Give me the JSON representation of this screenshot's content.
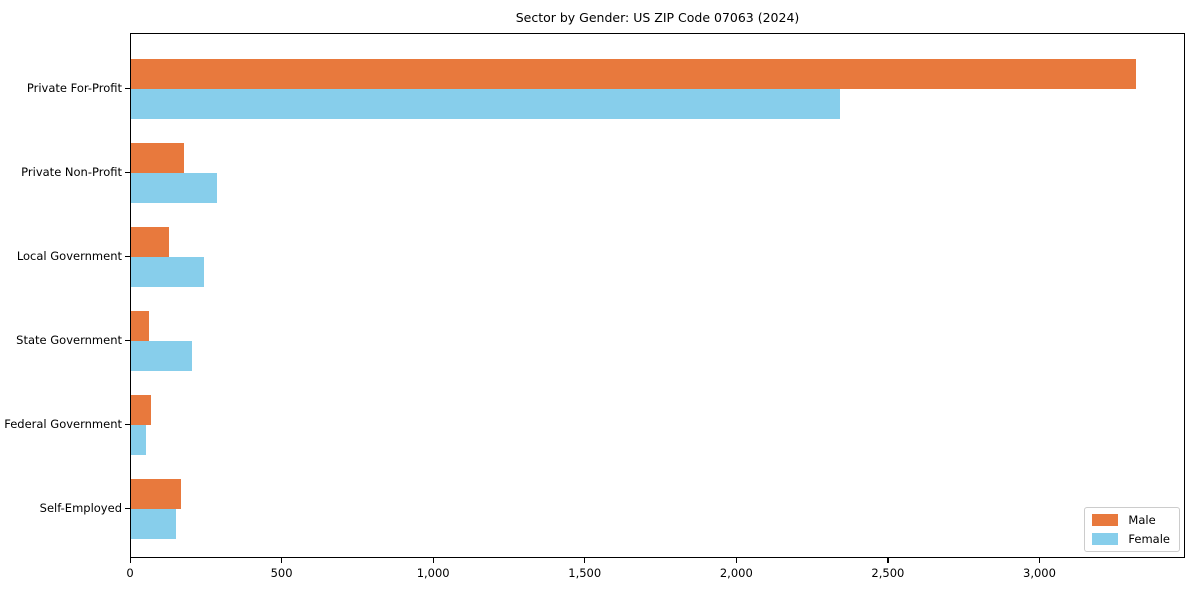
{
  "chart_data": {
    "type": "bar",
    "orientation": "horizontal",
    "title": "Sector by Gender: US ZIP Code 07063 (2024)",
    "categories": [
      "Private For-Profit",
      "Private Non-Profit",
      "Local Government",
      "State Government",
      "Federal Government",
      "Self-Employed"
    ],
    "series": [
      {
        "name": "Male",
        "color": "#e8793d",
        "values": [
          3315,
          175,
          125,
          60,
          65,
          165
        ]
      },
      {
        "name": "Female",
        "color": "#87ceeb",
        "values": [
          2340,
          285,
          240,
          200,
          50,
          150
        ]
      }
    ],
    "xlabel": "",
    "ylabel": "",
    "xlim": [
      0,
      3480
    ],
    "xticks": {
      "values": [
        0,
        500,
        1000,
        1500,
        2000,
        2500,
        3000
      ],
      "labels": [
        "0",
        "500",
        "1,000",
        "1,500",
        "2,000",
        "2,500",
        "3,000"
      ]
    },
    "grid": false,
    "legend_position": "lower right",
    "colors": {
      "male": "#e8793d",
      "female": "#87ceeb",
      "spine": "#000000",
      "legend_border": "#cccccc"
    }
  }
}
